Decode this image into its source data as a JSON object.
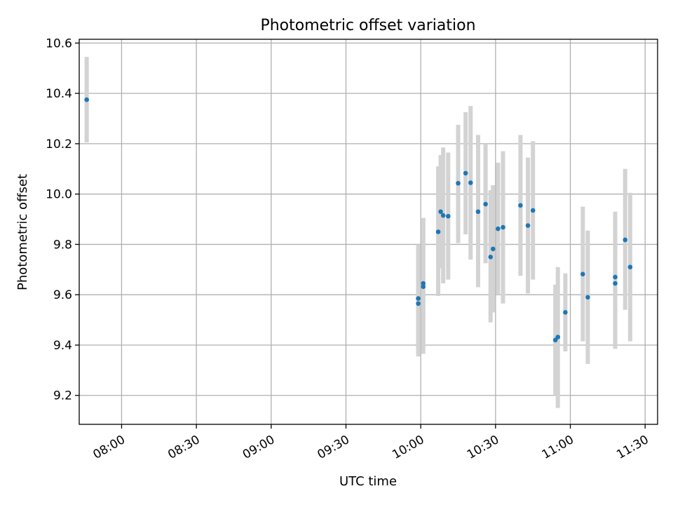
{
  "chart_data": {
    "type": "scatter",
    "title": "Photometric offset variation",
    "xlabel": "UTC time",
    "ylabel": "Photometric offset",
    "xlim": [
      "07:43",
      "11:35"
    ],
    "ylim": [
      9.085,
      10.615
    ],
    "x_ticks": [
      "08:00",
      "08:30",
      "09:00",
      "09:30",
      "10:00",
      "10:30",
      "11:00",
      "11:30"
    ],
    "y_ticks": [
      "9.2",
      "9.4",
      "9.6",
      "9.8",
      "10.0",
      "10.2",
      "10.4",
      "10.6"
    ],
    "grid": true,
    "colors": {
      "points": "#1f77b4",
      "error_bars": "#d3d3d3",
      "grid": "#b0b0b0"
    },
    "points": [
      {
        "x": "07:46",
        "y": 10.375,
        "err_low": 10.205,
        "err_high": 10.545
      },
      {
        "x": "09:59",
        "y": 9.565,
        "err_low": 9.355,
        "err_high": 9.8
      },
      {
        "x": "09:59",
        "y": 9.585,
        "err_low": 9.37,
        "err_high": 9.8
      },
      {
        "x": "10:01",
        "y": 9.645,
        "err_low": 9.39,
        "err_high": 9.9
      },
      {
        "x": "10:01",
        "y": 9.632,
        "err_low": 9.365,
        "err_high": 9.905
      },
      {
        "x": "10:07",
        "y": 9.85,
        "err_low": 9.595,
        "err_high": 10.11
      },
      {
        "x": "10:08",
        "y": 9.93,
        "err_low": 9.705,
        "err_high": 10.155
      },
      {
        "x": "10:09",
        "y": 9.915,
        "err_low": 9.645,
        "err_high": 10.185
      },
      {
        "x": "10:11",
        "y": 9.912,
        "err_low": 9.66,
        "err_high": 10.165
      },
      {
        "x": "10:15",
        "y": 10.043,
        "err_low": 9.805,
        "err_high": 10.275
      },
      {
        "x": "10:18",
        "y": 10.083,
        "err_low": 9.84,
        "err_high": 10.325
      },
      {
        "x": "10:20",
        "y": 10.045,
        "err_low": 9.74,
        "err_high": 10.35
      },
      {
        "x": "10:23",
        "y": 9.93,
        "err_low": 9.63,
        "err_high": 10.235
      },
      {
        "x": "10:26",
        "y": 9.96,
        "err_low": 9.725,
        "err_high": 10.2
      },
      {
        "x": "10:28",
        "y": 9.75,
        "err_low": 9.49,
        "err_high": 10.015
      },
      {
        "x": "10:29",
        "y": 9.782,
        "err_low": 9.53,
        "err_high": 10.035
      },
      {
        "x": "10:31",
        "y": 9.862,
        "err_low": 9.6,
        "err_high": 10.125
      },
      {
        "x": "10:33",
        "y": 9.868,
        "err_low": 9.565,
        "err_high": 10.17
      },
      {
        "x": "10:40",
        "y": 9.955,
        "err_low": 9.675,
        "err_high": 10.235
      },
      {
        "x": "10:43",
        "y": 9.875,
        "err_low": 9.605,
        "err_high": 10.145
      },
      {
        "x": "10:45",
        "y": 9.935,
        "err_low": 9.66,
        "err_high": 10.21
      },
      {
        "x": "10:54",
        "y": 9.42,
        "err_low": 9.2,
        "err_high": 9.64
      },
      {
        "x": "10:55",
        "y": 9.432,
        "err_low": 9.15,
        "err_high": 9.71
      },
      {
        "x": "10:58",
        "y": 9.53,
        "err_low": 9.375,
        "err_high": 9.685
      },
      {
        "x": "11:05",
        "y": 9.682,
        "err_low": 9.415,
        "err_high": 9.95
      },
      {
        "x": "11:07",
        "y": 9.59,
        "err_low": 9.325,
        "err_high": 9.855
      },
      {
        "x": "11:18",
        "y": 9.645,
        "err_low": 9.385,
        "err_high": 9.905
      },
      {
        "x": "11:18",
        "y": 9.67,
        "err_low": 9.405,
        "err_high": 9.93
      },
      {
        "x": "11:22",
        "y": 9.818,
        "err_low": 9.54,
        "err_high": 10.1
      },
      {
        "x": "11:24",
        "y": 9.71,
        "err_low": 9.415,
        "err_high": 10.005
      }
    ]
  }
}
